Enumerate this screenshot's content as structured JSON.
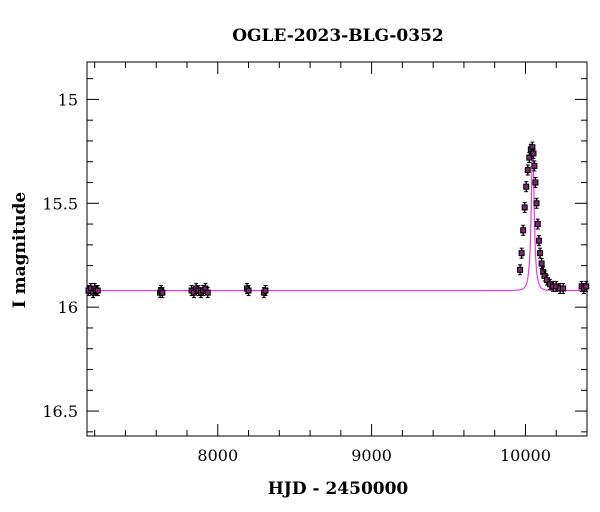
{
  "chart_data": {
    "type": "scatter",
    "title": "OGLE-2023-BLG-0352",
    "xlabel": "HJD - 2450000",
    "ylabel": "I magnitude",
    "xlim": [
      7150,
      10400
    ],
    "ylim": [
      16.62,
      14.82
    ],
    "y_inverted": true,
    "x_ticks": [
      8000,
      9000,
      10000
    ],
    "y_ticks": [
      15,
      15.5,
      16,
      16.5
    ],
    "x_tick_labels": [
      "8000",
      "9000",
      "10000"
    ],
    "y_tick_labels": [
      "15",
      "15.5",
      "16",
      "16.5"
    ],
    "grid": false,
    "legend": "none",
    "series": [
      {
        "kind": "points",
        "color": "#000000",
        "marker_color": "#7a2a6e",
        "x": [
          7160,
          7175,
          7190,
          7200,
          7210,
          7220,
          7625,
          7632,
          7640,
          7830,
          7845,
          7860,
          7875,
          7890,
          7905,
          7920,
          7935,
          8190,
          8200,
          8300,
          8310,
          9965,
          9975,
          9985,
          9995,
          10005,
          10015,
          10025,
          10035,
          10045,
          10052,
          10058,
          10065,
          10072,
          10080,
          10088,
          10095,
          10105,
          10115,
          10125,
          10140,
          10160,
          10180,
          10200,
          10225,
          10245,
          10365,
          10380,
          10395
        ],
        "y": [
          15.92,
          15.91,
          15.93,
          15.91,
          15.92,
          15.92,
          15.93,
          15.92,
          15.93,
          15.92,
          15.93,
          15.91,
          15.92,
          15.93,
          15.92,
          15.91,
          15.93,
          15.91,
          15.92,
          15.93,
          15.92,
          15.82,
          15.74,
          15.63,
          15.52,
          15.42,
          15.34,
          15.28,
          15.24,
          15.23,
          15.26,
          15.32,
          15.4,
          15.5,
          15.6,
          15.68,
          15.74,
          15.79,
          15.83,
          15.85,
          15.87,
          15.89,
          15.9,
          15.9,
          15.91,
          15.91,
          15.9,
          15.91,
          15.9
        ]
      },
      {
        "kind": "model",
        "color": "#e040e0",
        "baseline": 15.92,
        "peak_mag": 15.22,
        "t0": 10047,
        "tE": 22,
        "u0": 0.42
      }
    ]
  }
}
